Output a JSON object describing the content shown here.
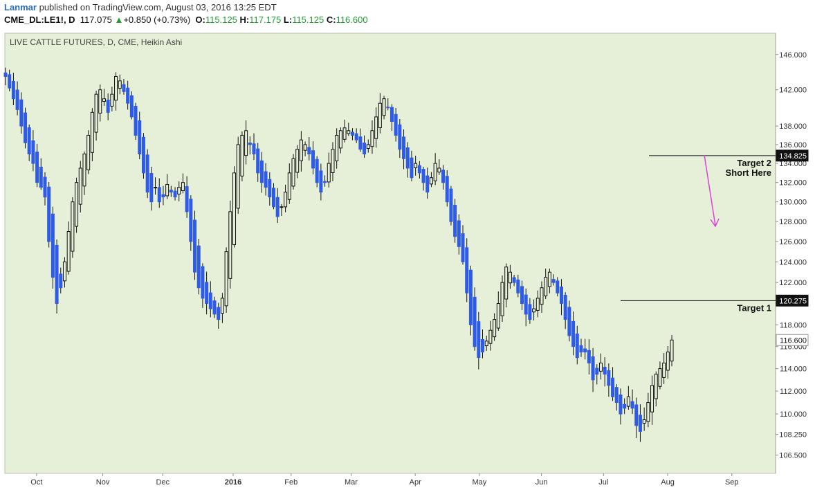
{
  "header": {
    "author": "Lanmar",
    "published": "published on TradingView.com, August 03, 2016 13:25 EDT",
    "symbol": "CME_DL:LE1!, D",
    "last": "117.075",
    "change": "+0.850 (+0.73%)",
    "o_label": "O:",
    "o": "115.125",
    "h_label": "H:",
    "h": "117.175",
    "l_label": "L:",
    "l": "115.125",
    "c_label": "C:",
    "c": "116.600"
  },
  "colors": {
    "plot_bg": "#e6efd8",
    "up_candle": "#111111",
    "down_candle": "#2e5be8",
    "arrow": "#e040d8",
    "up_text": "#1f9a2f"
  },
  "chart_data": {
    "type": "candlestick",
    "title": "LIVE CATTLE FUTURES, D, CME, Heikin Ashi",
    "x_labels": [
      "Oct",
      "Nov",
      "Dec",
      "2016",
      "Feb",
      "Mar",
      "Apr",
      "May",
      "Jun",
      "Jul",
      "Aug",
      "Sep"
    ],
    "y_ticks": [
      "146.000",
      "142.000",
      "138.000",
      "136.000",
      "134.000",
      "132.000",
      "130.000",
      "128.000",
      "126.000",
      "124.000",
      "122.000",
      "120.000",
      "118.000",
      "116.000",
      "114.000",
      "112.000",
      "110.000",
      "108.250",
      "106.500"
    ],
    "y_scale": "log",
    "y_range": [
      105.2,
      147.5
    ],
    "last_price": "116.600",
    "levels": [
      {
        "name": "Target 2",
        "note": "Short Here",
        "value": 134.825,
        "label": "134.825"
      },
      {
        "name": "Target 1",
        "value": 120.275,
        "label": "120.275"
      }
    ],
    "annotations": [
      "Target 2",
      "Short Here",
      "Target 1"
    ],
    "series": [
      {
        "date_start": "2015-09-16",
        "date_end": "2016-08-03",
        "close": [
          143.5,
          142.2,
          141.0,
          139.8,
          138.0,
          136.2,
          135.0,
          134.0,
          132.0,
          131.5,
          130.5,
          126.0,
          122.5,
          120.0,
          121.5,
          124.0,
          127.0,
          130.0,
          132.0,
          133.5,
          135.0,
          137.0,
          139.5,
          141.5,
          142.0,
          141.0,
          139.5,
          141.5,
          143.5,
          143.0,
          141.8,
          140.5,
          139.0,
          137.0,
          135.0,
          133.0,
          131.0,
          130.0,
          131.5,
          130.0,
          130.5,
          131.8,
          131.0,
          130.5,
          131.5,
          132.0,
          129.0,
          126.0,
          123.0,
          121.5,
          120.5,
          120.0,
          119.5,
          119.0,
          118.5,
          120.5,
          125.0,
          129.0,
          133.0,
          136.0,
          137.0,
          137.5,
          136.0,
          135.0,
          133.0,
          132.0,
          131.5,
          130.5,
          129.5,
          128.5,
          129.5,
          131.0,
          133.0,
          134.5,
          135.5,
          136.5,
          136.0,
          135.0,
          133.5,
          132.0,
          131.0,
          132.0,
          134.0,
          135.5,
          137.0,
          137.5,
          137.8,
          137.5,
          137.0,
          136.5,
          135.5,
          135.0,
          136.0,
          137.5,
          139.0,
          140.5,
          141.0,
          140.0,
          138.5,
          137.0,
          135.5,
          134.5,
          133.5,
          132.5,
          134.0,
          133.0,
          132.0,
          131.0,
          132.5,
          134.0,
          133.5,
          132.0,
          130.0,
          128.0,
          126.5,
          125.5,
          124.0,
          121.0,
          118.0,
          116.0,
          115.0,
          115.5,
          116.5,
          117.5,
          118.5,
          120.0,
          122.0,
          123.5,
          123.0,
          122.0,
          121.0,
          120.0,
          119.0,
          118.5,
          119.5,
          120.5,
          121.5,
          122.5,
          123.0,
          122.0,
          121.0,
          120.0,
          118.5,
          117.0,
          116.0,
          115.0,
          115.5,
          115.5,
          114.5,
          113.0,
          113.5,
          114.5,
          113.5,
          112.5,
          111.5,
          111.0,
          110.0,
          110.5,
          111.5,
          110.5,
          109.0,
          108.5,
          109.5,
          111.0,
          112.5,
          113.5,
          114.0,
          114.5,
          115.5,
          116.6
        ]
      }
    ]
  }
}
